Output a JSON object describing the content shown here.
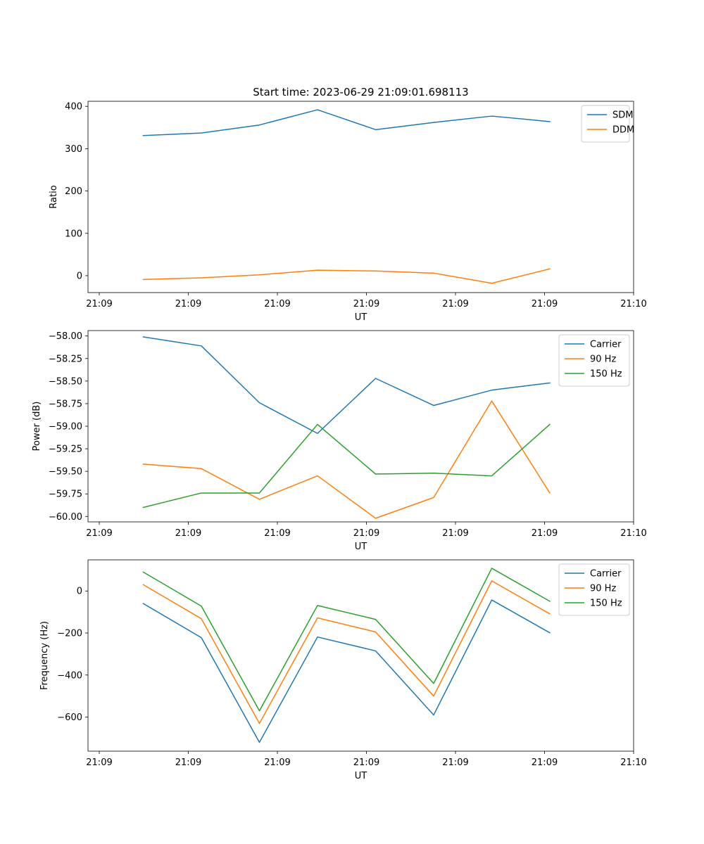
{
  "figure": {
    "title": "Start time: 2023-06-29 21:09:01.698113"
  },
  "x_tick_labels": [
    "21:09",
    "21:09",
    "21:09",
    "21:09",
    "21:09",
    "21:09",
    "21:10"
  ],
  "colors": {
    "blue": "#1f77b4",
    "orange": "#ff7f0e",
    "green": "#2ca02c"
  },
  "chart_data": [
    {
      "type": "line",
      "title": "Start time: 2023-06-29 21:09:01.698113",
      "xlabel": "UT",
      "ylabel": "Ratio",
      "ylim": [
        -40,
        412
      ],
      "yticks": [
        0,
        100,
        200,
        300,
        400
      ],
      "ytick_labels": [
        "0",
        "100",
        "200",
        "300",
        "400"
      ],
      "legend_position": "top-right",
      "series": [
        {
          "name": "SDM",
          "color": "#1f77b4",
          "values": [
            331,
            337,
            356,
            392,
            345,
            362,
            377,
            364
          ]
        },
        {
          "name": "DDM",
          "color": "#ff7f0e",
          "values": [
            -9,
            -5,
            2,
            13,
            11,
            6,
            -18,
            16
          ]
        }
      ]
    },
    {
      "type": "line",
      "title": "",
      "xlabel": "UT",
      "ylabel": "Power (dB)",
      "ylim": [
        -60.06,
        -57.94
      ],
      "yticks": [
        -60.0,
        -59.75,
        -59.5,
        -59.25,
        -59.0,
        -58.75,
        -58.5,
        -58.25,
        -58.0
      ],
      "ytick_labels": [
        "−60.00",
        "−59.75",
        "−59.50",
        "−59.25",
        "−59.00",
        "−58.75",
        "−58.50",
        "−58.25",
        "−58.00"
      ],
      "legend_position": "top-right",
      "series": [
        {
          "name": "Carrier",
          "color": "#1f77b4",
          "values": [
            -58.01,
            -58.11,
            -58.74,
            -59.08,
            -58.47,
            -58.77,
            -58.6,
            -58.52
          ]
        },
        {
          "name": "90 Hz",
          "color": "#ff7f0e",
          "values": [
            -59.42,
            -59.47,
            -59.81,
            -59.55,
            -60.02,
            -59.79,
            -58.72,
            -59.74
          ]
        },
        {
          "name": "150 Hz",
          "color": "#2ca02c",
          "values": [
            -59.9,
            -59.74,
            -59.74,
            -58.98,
            -59.53,
            -59.52,
            -59.55,
            -58.98
          ]
        }
      ]
    },
    {
      "type": "line",
      "title": "",
      "xlabel": "UT",
      "ylabel": "Frequency (Hz)",
      "ylim": [
        -762,
        148
      ],
      "yticks": [
        -600,
        -400,
        -200,
        0
      ],
      "ytick_labels": [
        "−600",
        "−400",
        "−200",
        "0"
      ],
      "legend_position": "top-right",
      "series": [
        {
          "name": "Carrier",
          "color": "#1f77b4",
          "values": [
            -60,
            -222,
            -720,
            -219,
            -285,
            -590,
            -43,
            -199
          ]
        },
        {
          "name": "90 Hz",
          "color": "#ff7f0e",
          "values": [
            30,
            -132,
            -630,
            -128,
            -195,
            -500,
            48,
            -109
          ]
        },
        {
          "name": "150 Hz",
          "color": "#2ca02c",
          "values": [
            90,
            -72,
            -570,
            -69,
            -135,
            -440,
            108,
            -49
          ]
        }
      ]
    }
  ]
}
